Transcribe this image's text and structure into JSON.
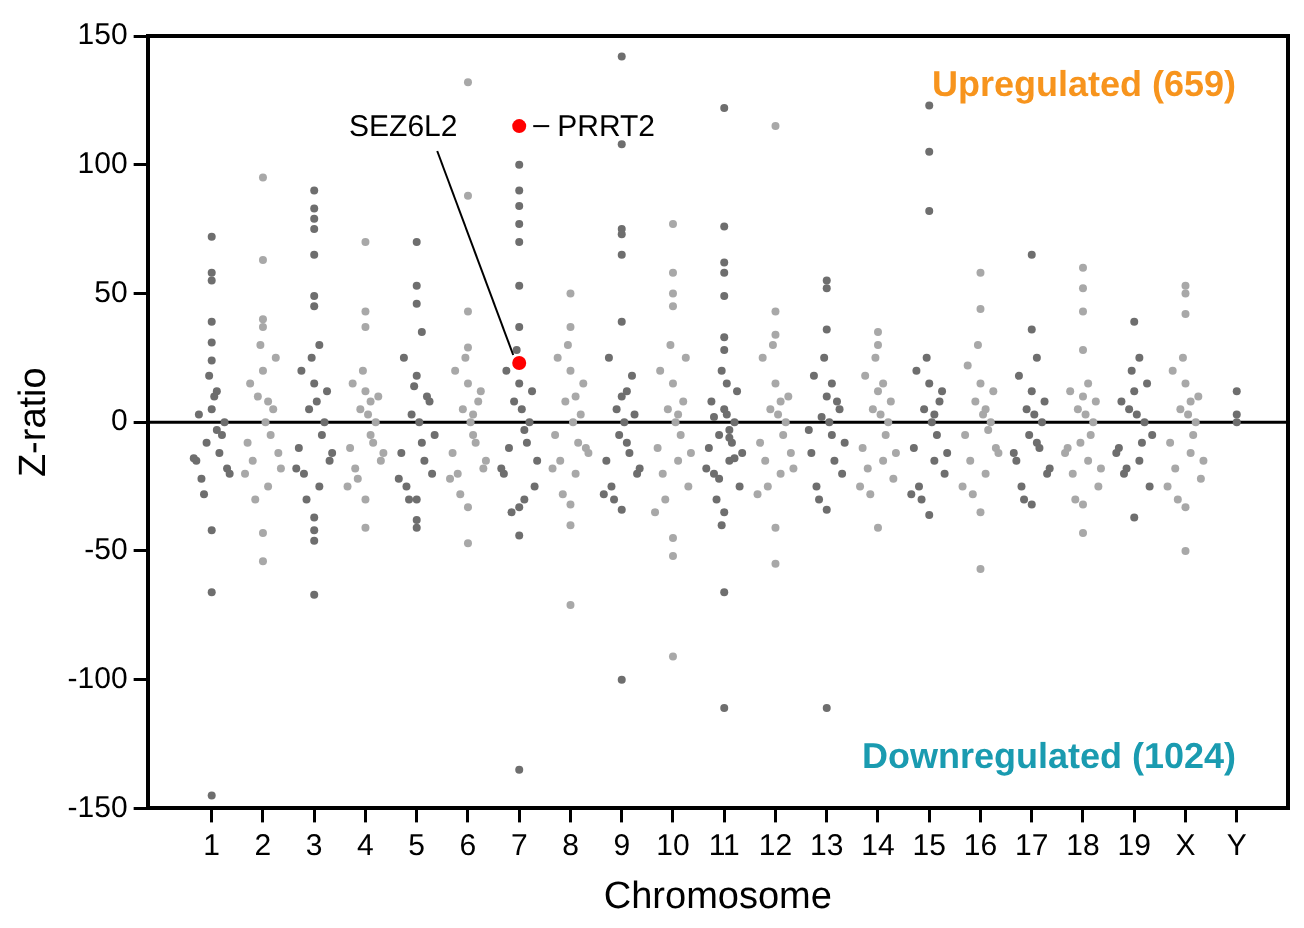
{
  "chart_data": {
    "type": "scatter",
    "xlabel": "Chromosome",
    "ylabel": "Z-ratio",
    "xlim": [
      -0.25,
      22
    ],
    "ylim": [
      -150,
      150
    ],
    "xticks": [
      {
        "value": 1,
        "label": "1"
      },
      {
        "value": 2,
        "label": "2"
      },
      {
        "value": 3,
        "label": "3"
      },
      {
        "value": 4,
        "label": "4"
      },
      {
        "value": 5,
        "label": "5"
      },
      {
        "value": 6,
        "label": "6"
      },
      {
        "value": 7,
        "label": "7"
      },
      {
        "value": 8,
        "label": "8"
      },
      {
        "value": 9,
        "label": "9"
      },
      {
        "value": 10,
        "label": "10"
      },
      {
        "value": 11,
        "label": "11"
      },
      {
        "value": 12,
        "label": "12"
      },
      {
        "value": 13,
        "label": "13"
      },
      {
        "value": 14,
        "label": "14"
      },
      {
        "value": 15,
        "label": "15"
      },
      {
        "value": 16,
        "label": "16"
      },
      {
        "value": 17,
        "label": "17"
      },
      {
        "value": 18,
        "label": "18"
      },
      {
        "value": 19,
        "label": "19"
      },
      {
        "value": 20,
        "label": "X"
      },
      {
        "value": 21,
        "label": "Y"
      }
    ],
    "yticks": [
      -150,
      -100,
      -50,
      0,
      50,
      100,
      150
    ],
    "grid": false,
    "legend": false,
    "marker": "circle",
    "ref_lines": [
      {
        "axis": "y",
        "value": 0,
        "color": "#000000"
      }
    ],
    "annotations": [
      "Upregulated (659)",
      "Downregulated (1024)",
      {
        "text": "PRRT2",
        "x": 7,
        "y": 115
      },
      {
        "text": "SEZ6L2",
        "x": 7,
        "y": 23
      }
    ],
    "series": [
      {
        "color": "#6e6e6e",
        "x": [
          0.7,
          0.8,
          0.9,
          1,
          1.1,
          1.2,
          1.3,
          0.75,
          0.85,
          1.05,
          1.15,
          1.25,
          0.95,
          1.35,
          0.65,
          1.1,
          1,
          1,
          1,
          1,
          1,
          1,
          1,
          1,
          1,
          2.7,
          2.8,
          2.9,
          3,
          3.1,
          3.2,
          3.3,
          2.75,
          2.85,
          3.05,
          3.15,
          3.25,
          2.95,
          3.35,
          2.65,
          3.1,
          3,
          3,
          3,
          3,
          3,
          3,
          3,
          3,
          3,
          3,
          3,
          4.7,
          4.8,
          4.9,
          5,
          5.1,
          5.2,
          5.3,
          4.75,
          4.85,
          5.05,
          5.15,
          5.25,
          4.95,
          5.35,
          4.65,
          5.1,
          5,
          5,
          5,
          5,
          5,
          5,
          6.7,
          6.8,
          6.9,
          7,
          7.1,
          7.2,
          7.3,
          6.75,
          6.85,
          7.05,
          7.15,
          7.25,
          6.95,
          7.35,
          6.65,
          7.1,
          7,
          7,
          7,
          7,
          7,
          7,
          7,
          7,
          7,
          7,
          8.7,
          8.8,
          8.9,
          9,
          9.1,
          9.2,
          9.3,
          8.75,
          8.85,
          9.05,
          9.15,
          9.25,
          8.95,
          9.35,
          8.65,
          9.1,
          9,
          9,
          9,
          9,
          9,
          9,
          9,
          9,
          10.7,
          10.8,
          10.9,
          11,
          11.1,
          11.2,
          11.3,
          10.75,
          10.85,
          11.05,
          11.15,
          11.25,
          10.95,
          11.35,
          10.65,
          11.1,
          10.9,
          11.1,
          11,
          10.8,
          11.2,
          11.05,
          10.95,
          11,
          11,
          11,
          11,
          11,
          11,
          11,
          11,
          11,
          12.7,
          12.8,
          12.9,
          13,
          13.1,
          13.2,
          13.3,
          12.75,
          12.85,
          13.05,
          13.15,
          13.25,
          12.95,
          13.35,
          12.65,
          13.1,
          13,
          13,
          13,
          13,
          13,
          14.7,
          14.8,
          14.9,
          15,
          15.1,
          15.2,
          15.3,
          14.75,
          14.85,
          15.05,
          15.15,
          15.25,
          14.95,
          15.35,
          14.65,
          15.1,
          15,
          15,
          15,
          15,
          16.7,
          16.8,
          16.9,
          17,
          17.1,
          17.2,
          17.3,
          16.75,
          16.85,
          17.05,
          17.15,
          17.25,
          16.95,
          17.35,
          16.65,
          17.1,
          17,
          17,
          17,
          18.7,
          18.8,
          18.9,
          19,
          19.1,
          19.2,
          19.3,
          18.75,
          18.85,
          19.05,
          19.15,
          19.25,
          18.95,
          19.35,
          18.65,
          19.1,
          19,
          19,
          21,
          21,
          21
        ],
        "values": [
          -15,
          -22,
          -8,
          5,
          12,
          -5,
          -18,
          3,
          -28,
          10,
          -12,
          0,
          18,
          -20,
          -14,
          -3,
          72,
          58,
          55,
          39,
          31,
          24,
          -42,
          -66,
          -145,
          -10,
          -20,
          5,
          15,
          -25,
          0,
          -15,
          20,
          -30,
          8,
          -5,
          12,
          25,
          -12,
          -18,
          30,
          90,
          83,
          79,
          75,
          65,
          49,
          45,
          -37,
          -42,
          -46,
          -67,
          -12,
          -25,
          3,
          18,
          -8,
          10,
          -20,
          25,
          -30,
          0,
          -15,
          8,
          14,
          -5,
          -22,
          35,
          70,
          53,
          46,
          -30,
          -41,
          -38,
          -20,
          -10,
          8,
          15,
          -30,
          0,
          -25,
          20,
          -35,
          5,
          -8,
          12,
          28,
          -15,
          -18,
          -3,
          100,
          90,
          84,
          77,
          70,
          53,
          37,
          -33,
          -44,
          -135,
          -15,
          -25,
          5,
          10,
          -8,
          18,
          -20,
          25,
          -30,
          0,
          -12,
          3,
          -5,
          -18,
          -28,
          12,
          142,
          108,
          75,
          73,
          65,
          39,
          -34,
          -100,
          -10,
          -20,
          -5,
          5,
          -15,
          0,
          -25,
          8,
          -30,
          3,
          -8,
          12,
          20,
          -12,
          -18,
          -3,
          -22,
          -6,
          -35,
          2,
          -14,
          15,
          -40,
          28,
          122,
          76,
          62,
          58,
          49,
          33,
          -66,
          -111,
          -12,
          -25,
          2,
          10,
          -5,
          8,
          -20,
          18,
          -30,
          0,
          -15,
          5,
          25,
          -8,
          -3,
          15,
          55,
          52,
          36,
          -34,
          -111,
          -10,
          -25,
          5,
          15,
          -15,
          8,
          -20,
          20,
          -30,
          0,
          -5,
          12,
          25,
          -12,
          -28,
          3,
          123,
          105,
          82,
          -36,
          -15,
          -25,
          5,
          12,
          -8,
          0,
          -20,
          18,
          -30,
          3,
          -10,
          8,
          -5,
          -18,
          -12,
          25,
          65,
          36,
          -32,
          -10,
          -20,
          5,
          12,
          -15,
          0,
          -25,
          8,
          -18,
          3,
          -8,
          15,
          20,
          -5,
          -12,
          25,
          39,
          -37,
          12,
          3,
          0
        ]
      },
      {
        "color": "#a8a8a8",
        "x": [
          1.7,
          1.8,
          1.9,
          2,
          2.1,
          2.2,
          2.3,
          1.75,
          1.85,
          2.05,
          2.15,
          2.25,
          1.95,
          2.35,
          1.65,
          2.1,
          2,
          2,
          2,
          2,
          2,
          2,
          3.7,
          3.8,
          3.9,
          4,
          4.1,
          4.2,
          4.3,
          3.75,
          3.85,
          4.05,
          4.15,
          4.25,
          3.95,
          4.35,
          3.65,
          4.1,
          4,
          4,
          4,
          4,
          4,
          5.7,
          5.8,
          5.9,
          6,
          6.1,
          6.2,
          6.3,
          5.75,
          5.85,
          6.05,
          6.15,
          6.25,
          5.95,
          6.35,
          5.65,
          6.1,
          6,
          6,
          6,
          6,
          6,
          6,
          7.7,
          7.8,
          7.9,
          8,
          8.1,
          8.2,
          8.3,
          7.75,
          7.85,
          8.05,
          8.15,
          8.25,
          7.95,
          8.35,
          7.65,
          8.1,
          8,
          8,
          8,
          8,
          8,
          9.7,
          9.8,
          9.9,
          10,
          10.1,
          10.2,
          10.3,
          9.75,
          9.85,
          10.05,
          10.15,
          10.25,
          9.95,
          10.35,
          9.65,
          10.1,
          10,
          10,
          10,
          10,
          10,
          10,
          10,
          11.7,
          11.8,
          11.9,
          12,
          12.1,
          12.2,
          12.3,
          11.75,
          11.85,
          12.05,
          12.15,
          12.25,
          11.95,
          12.35,
          11.65,
          12.1,
          12,
          12,
          12,
          12,
          12,
          13.7,
          13.8,
          13.9,
          14,
          14.1,
          14.2,
          14.3,
          13.75,
          13.85,
          14.05,
          14.15,
          14.25,
          13.95,
          14.35,
          13.65,
          14.1,
          14,
          14,
          14,
          15.7,
          15.8,
          15.9,
          16,
          16.1,
          16.2,
          16.3,
          15.75,
          15.85,
          16.05,
          16.15,
          16.25,
          15.95,
          16.35,
          15.65,
          16.1,
          16,
          16,
          16,
          16,
          17.7,
          17.8,
          17.9,
          18,
          18.1,
          18.2,
          18.3,
          17.75,
          17.85,
          18.05,
          18.15,
          18.25,
          17.95,
          18.35,
          17.65,
          18.1,
          18,
          18,
          18,
          18,
          18,
          18,
          19.7,
          19.8,
          19.9,
          20,
          20.1,
          20.2,
          20.3,
          19.75,
          19.85,
          20.05,
          20.15,
          20.25,
          19.95,
          20.35,
          19.65,
          20.1,
          20,
          20,
          20,
          20,
          20
        ],
        "values": [
          -8,
          -15,
          10,
          20,
          -25,
          5,
          -12,
          15,
          -30,
          0,
          -5,
          25,
          30,
          -18,
          -20,
          8,
          95,
          63,
          40,
          37,
          -43,
          -54,
          -10,
          -18,
          5,
          12,
          -5,
          0,
          -15,
          15,
          -22,
          3,
          -8,
          10,
          20,
          -12,
          -25,
          8,
          70,
          43,
          37,
          -30,
          -41,
          -12,
          -20,
          5,
          15,
          -5,
          8,
          -18,
          20,
          -28,
          0,
          -8,
          12,
          25,
          -15,
          -22,
          3,
          132,
          88,
          43,
          29,
          -47,
          -33,
          -5,
          -15,
          8,
          20,
          -20,
          3,
          -10,
          25,
          -28,
          0,
          -8,
          15,
          30,
          -12,
          -18,
          10,
          50,
          37,
          -40,
          -71,
          -32,
          -10,
          -20,
          5,
          15,
          -15,
          8,
          -25,
          20,
          -30,
          0,
          -5,
          25,
          30,
          -12,
          -35,
          3,
          77,
          58,
          50,
          45,
          -45,
          -52,
          -91,
          -8,
          -15,
          5,
          15,
          -20,
          0,
          -12,
          25,
          -25,
          3,
          -5,
          10,
          30,
          -18,
          -28,
          8,
          115,
          43,
          34,
          -41,
          -55,
          -10,
          -18,
          5,
          12,
          -15,
          0,
          -22,
          18,
          -28,
          3,
          -5,
          8,
          25,
          -12,
          -25,
          15,
          35,
          30,
          -41,
          -5,
          -15,
          8,
          15,
          -20,
          0,
          -10,
          22,
          -28,
          3,
          -3,
          12,
          30,
          -12,
          -25,
          5,
          58,
          44,
          -35,
          -57,
          -10,
          -20,
          5,
          10,
          -15,
          0,
          -25,
          12,
          -30,
          3,
          -5,
          8,
          -8,
          -18,
          -12,
          15,
          60,
          52,
          43,
          28,
          -43,
          -32,
          -8,
          -18,
          5,
          15,
          -12,
          0,
          -22,
          20,
          -30,
          3,
          -5,
          10,
          25,
          -15,
          -25,
          8,
          53,
          50,
          42,
          -50,
          -33
        ]
      },
      {
        "color": "#ff0000",
        "x": [
          7,
          7
        ],
        "values": [
          115,
          23
        ]
      }
    ]
  }
}
